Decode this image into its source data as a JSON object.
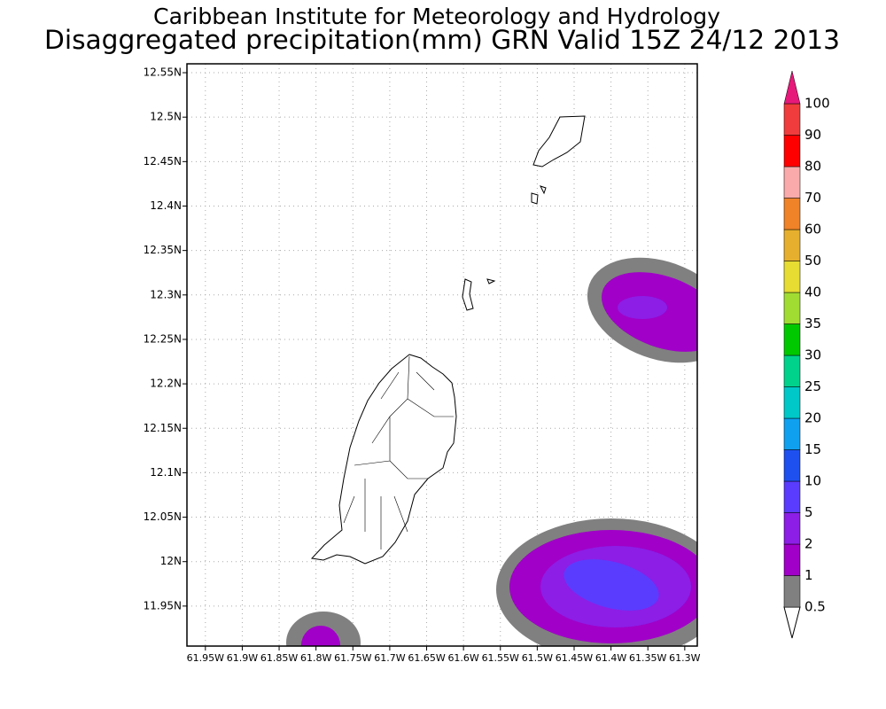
{
  "header": {
    "title": "Caribbean Institute for Meteorology and Hydrology",
    "subtitle": "Disaggregated precipitation(mm) GRN Valid 15Z 24/12 2013"
  },
  "map": {
    "lat_range": [
      11.905,
      12.56
    ],
    "lon_range": [
      -61.975,
      -61.283
    ],
    "grid": true,
    "lat_ticks": [
      {
        "value": 12.55,
        "label": "12.55N"
      },
      {
        "value": 12.5,
        "label": "12.5N"
      },
      {
        "value": 12.45,
        "label": "12.45N"
      },
      {
        "value": 12.4,
        "label": "12.4N"
      },
      {
        "value": 12.35,
        "label": "12.35N"
      },
      {
        "value": 12.3,
        "label": "12.3N"
      },
      {
        "value": 12.25,
        "label": "12.25N"
      },
      {
        "value": 12.2,
        "label": "12.2N"
      },
      {
        "value": 12.15,
        "label": "12.15N"
      },
      {
        "value": 12.1,
        "label": "12.1N"
      },
      {
        "value": 12.05,
        "label": "12.05N"
      },
      {
        "value": 12,
        "label": "12N"
      },
      {
        "value": 11.95,
        "label": "11.95N"
      }
    ],
    "lon_ticks": [
      {
        "value": -61.95,
        "label": "61.95W"
      },
      {
        "value": -61.9,
        "label": "61.9W"
      },
      {
        "value": -61.85,
        "label": "61.85W"
      },
      {
        "value": -61.8,
        "label": "61.8W"
      },
      {
        "value": -61.75,
        "label": "61.75W"
      },
      {
        "value": -61.7,
        "label": "61.7W"
      },
      {
        "value": -61.65,
        "label": "61.65W"
      },
      {
        "value": -61.6,
        "label": "61.6W"
      },
      {
        "value": -61.55,
        "label": "61.55W"
      },
      {
        "value": -61.5,
        "label": "61.5W"
      },
      {
        "value": -61.45,
        "label": "61.45W"
      },
      {
        "value": -61.4,
        "label": "61.4W"
      },
      {
        "value": -61.35,
        "label": "61.35W"
      },
      {
        "value": -61.3,
        "label": "61.3W"
      }
    ]
  },
  "legend": {
    "levels": [
      0.5,
      1,
      2,
      5,
      10,
      15,
      20,
      25,
      30,
      35,
      40,
      50,
      60,
      70,
      80,
      90,
      100
    ],
    "colors": [
      "#ffffff",
      "#808080",
      "#a000c8",
      "#8c1ee6",
      "#5a3cff",
      "#1e50f0",
      "#0fa0f0",
      "#00c8c8",
      "#00d28c",
      "#00c800",
      "#a0dc32",
      "#e6dc32",
      "#e6af2d",
      "#f08228",
      "#faaaaa",
      "#ff0000",
      "#f03c3c",
      "#e6197a"
    ]
  }
}
